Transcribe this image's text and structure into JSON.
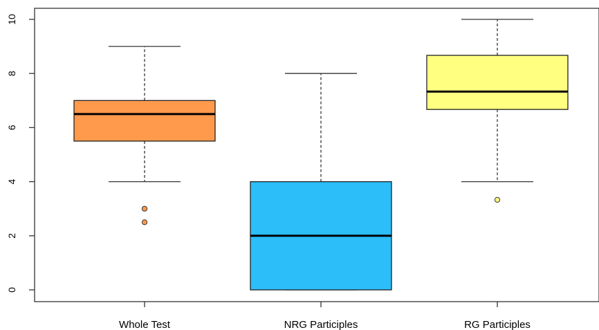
{
  "chart_data": {
    "type": "box",
    "categories": [
      "Whole Test",
      "NRG Participles",
      "RG Participles"
    ],
    "boxes": [
      {
        "category": "Whole Test",
        "min": 4,
        "q1": 5.5,
        "median": 6.5,
        "q3": 7,
        "max": 9,
        "outliers": [
          3,
          2.5
        ],
        "color": "#FF9A4D"
      },
      {
        "category": "NRG Participles",
        "min": 0,
        "q1": 0,
        "median": 2,
        "q3": 4,
        "max": 8,
        "outliers": [],
        "color": "#2BBEF9"
      },
      {
        "category": "RG Participles",
        "min": 4,
        "q1": 6.67,
        "median": 7.33,
        "q3": 8.67,
        "max": 10,
        "outliers": [
          3.33
        ],
        "color": "#FFFF80"
      }
    ],
    "y_ticks": [
      0,
      2,
      4,
      6,
      8,
      10
    ],
    "ylim": [
      -0.4,
      10.4
    ],
    "title": "",
    "xlabel": "",
    "ylabel": "",
    "grid": false,
    "legend": "none"
  }
}
